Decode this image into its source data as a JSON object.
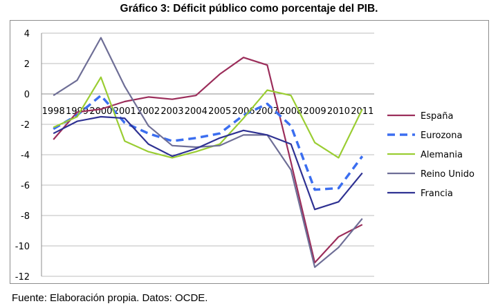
{
  "chart_data": {
    "type": "line",
    "title": "Gráfico 3: Déficit público como porcentaje del PIB.",
    "source": "Fuente: Elaboración propia. Datos: OCDE.",
    "x": [
      "1998",
      "1999",
      "2000",
      "2001",
      "2002",
      "2003",
      "2004",
      "2005",
      "2006",
      "2007",
      "2008",
      "2009",
      "2010",
      "2011"
    ],
    "ylim": [
      -12,
      4
    ],
    "yticks": [
      "4",
      "2",
      "0",
      "-2",
      "-4",
      "-6",
      "-8",
      "-10",
      "-12"
    ],
    "grid": true,
    "legend_position": "right",
    "series": [
      {
        "name": "España",
        "color": "#9b2d5a",
        "dash": "solid",
        "values": [
          -3.0,
          -1.2,
          -1.0,
          -0.5,
          -0.2,
          -0.35,
          -0.1,
          1.3,
          2.4,
          1.9,
          -4.5,
          -11.1,
          -9.4,
          -8.6
        ]
      },
      {
        "name": "Eurozona",
        "color": "#3b6ef0",
        "dash": "dashed",
        "values": [
          -2.3,
          -1.4,
          -0.1,
          -1.9,
          -2.6,
          -3.1,
          -2.9,
          -2.6,
          -1.4,
          -0.65,
          -2.1,
          -6.3,
          -6.2,
          -4.1
        ]
      },
      {
        "name": "Alemania",
        "color": "#9acd32",
        "dash": "solid",
        "values": [
          -2.2,
          -1.5,
          1.1,
          -3.1,
          -3.8,
          -4.2,
          -3.8,
          -3.3,
          -1.6,
          0.25,
          -0.1,
          -3.2,
          -4.2,
          -1.0
        ]
      },
      {
        "name": "Reino Unido",
        "color": "#6e6e96",
        "dash": "solid",
        "values": [
          -0.1,
          0.9,
          3.7,
          0.5,
          -2.1,
          -3.4,
          -3.5,
          -3.4,
          -2.7,
          -2.7,
          -5.0,
          -11.4,
          -10.1,
          -8.2
        ]
      },
      {
        "name": "Francia",
        "color": "#2e3192",
        "dash": "solid",
        "values": [
          -2.6,
          -1.8,
          -1.5,
          -1.6,
          -3.3,
          -4.1,
          -3.6,
          -2.9,
          -2.4,
          -2.7,
          -3.3,
          -7.6,
          -7.1,
          -5.2
        ]
      }
    ]
  }
}
